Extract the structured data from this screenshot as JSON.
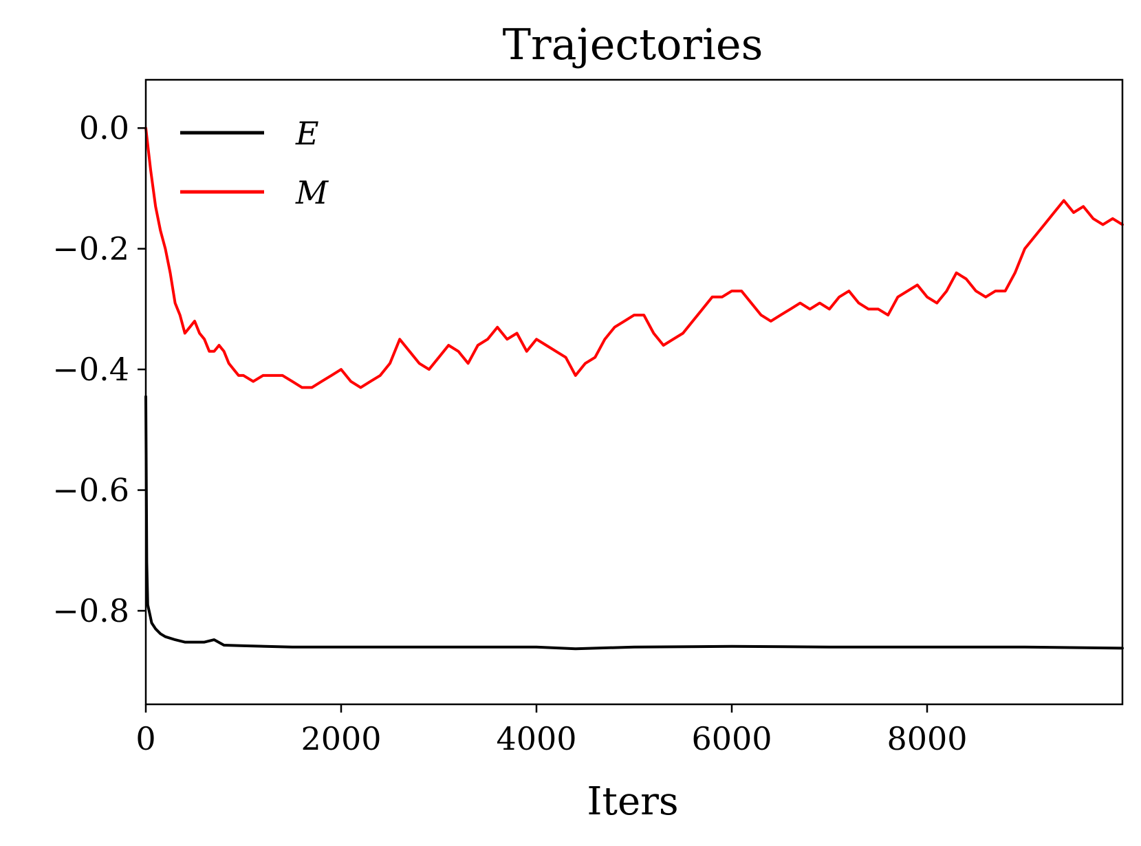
{
  "chart_data": {
    "type": "line",
    "title": "Trajectories",
    "xlabel": "Iters",
    "ylabel": "",
    "xlim": [
      0,
      10000
    ],
    "ylim": [
      -0.955,
      0.08
    ],
    "xticks": [
      0,
      2000,
      4000,
      6000,
      8000
    ],
    "xtick_labels": [
      "0",
      "2000",
      "4000",
      "6000",
      "8000"
    ],
    "yticks": [
      0.0,
      -0.2,
      -0.4,
      -0.6,
      -0.8
    ],
    "ytick_labels": [
      "0.0",
      "−0.2",
      "−0.4",
      "−0.6",
      "−0.8"
    ],
    "grid": false,
    "legend_position": "upper-left",
    "series": [
      {
        "name": "E",
        "color": "#000000",
        "x": [
          0,
          10,
          20,
          40,
          60,
          100,
          150,
          200,
          300,
          400,
          500,
          600,
          700,
          800,
          1000,
          1500,
          2000,
          3000,
          4000,
          4400,
          5000,
          6000,
          7000,
          8000,
          9000,
          10000
        ],
        "y": [
          -0.445,
          -0.72,
          -0.79,
          -0.805,
          -0.82,
          -0.83,
          -0.838,
          -0.843,
          -0.848,
          -0.852,
          -0.852,
          -0.852,
          -0.848,
          -0.857,
          -0.858,
          -0.86,
          -0.86,
          -0.86,
          -0.86,
          -0.863,
          -0.86,
          -0.859,
          -0.86,
          -0.86,
          -0.86,
          -0.862
        ]
      },
      {
        "name": "M",
        "color": "#ff0000",
        "x": [
          0,
          50,
          100,
          150,
          200,
          250,
          300,
          350,
          400,
          450,
          500,
          550,
          600,
          650,
          700,
          750,
          800,
          850,
          900,
          950,
          1000,
          1100,
          1200,
          1300,
          1400,
          1500,
          1600,
          1700,
          1800,
          1900,
          2000,
          2100,
          2200,
          2300,
          2400,
          2500,
          2600,
          2700,
          2800,
          2900,
          3000,
          3100,
          3200,
          3300,
          3400,
          3500,
          3600,
          3700,
          3800,
          3900,
          4000,
          4100,
          4200,
          4300,
          4400,
          4500,
          4600,
          4700,
          4800,
          4900,
          5000,
          5100,
          5200,
          5300,
          5400,
          5500,
          5600,
          5700,
          5800,
          5900,
          6000,
          6100,
          6200,
          6300,
          6400,
          6500,
          6600,
          6700,
          6800,
          6900,
          7000,
          7100,
          7200,
          7300,
          7400,
          7500,
          7600,
          7700,
          7800,
          7900,
          8000,
          8100,
          8200,
          8300,
          8400,
          8500,
          8600,
          8700,
          8800,
          8900,
          9000,
          9100,
          9200,
          9300,
          9400,
          9500,
          9600,
          9700,
          9800,
          9900,
          10000
        ],
        "y": [
          0.0,
          -0.07,
          -0.13,
          -0.17,
          -0.2,
          -0.24,
          -0.29,
          -0.31,
          -0.34,
          -0.33,
          -0.32,
          -0.34,
          -0.35,
          -0.37,
          -0.37,
          -0.36,
          -0.37,
          -0.39,
          -0.4,
          -0.41,
          -0.41,
          -0.42,
          -0.41,
          -0.41,
          -0.41,
          -0.42,
          -0.43,
          -0.43,
          -0.42,
          -0.41,
          -0.4,
          -0.42,
          -0.43,
          -0.42,
          -0.41,
          -0.39,
          -0.35,
          -0.37,
          -0.39,
          -0.4,
          -0.38,
          -0.36,
          -0.37,
          -0.39,
          -0.36,
          -0.35,
          -0.33,
          -0.35,
          -0.34,
          -0.37,
          -0.35,
          -0.36,
          -0.37,
          -0.38,
          -0.41,
          -0.39,
          -0.38,
          -0.35,
          -0.33,
          -0.32,
          -0.31,
          -0.31,
          -0.34,
          -0.36,
          -0.35,
          -0.34,
          -0.32,
          -0.3,
          -0.28,
          -0.28,
          -0.27,
          -0.27,
          -0.29,
          -0.31,
          -0.32,
          -0.31,
          -0.3,
          -0.29,
          -0.3,
          -0.29,
          -0.3,
          -0.28,
          -0.27,
          -0.29,
          -0.3,
          -0.3,
          -0.31,
          -0.28,
          -0.27,
          -0.26,
          -0.28,
          -0.29,
          -0.27,
          -0.24,
          -0.25,
          -0.27,
          -0.28,
          -0.27,
          -0.27,
          -0.24,
          -0.2,
          -0.18,
          -0.16,
          -0.14,
          -0.12,
          -0.14,
          -0.13,
          -0.15,
          -0.16,
          -0.15,
          -0.16
        ]
      }
    ]
  }
}
